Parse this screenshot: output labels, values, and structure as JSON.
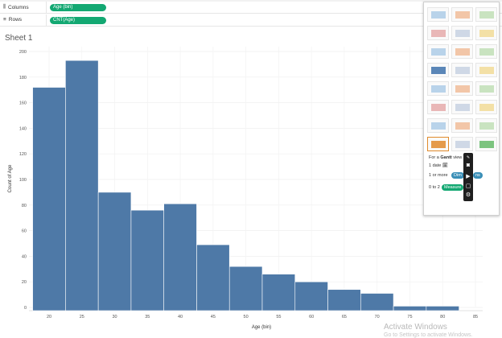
{
  "shelves": {
    "columns": {
      "label": "Columns",
      "pill": "Age (bin)"
    },
    "rows": {
      "label": "Rows",
      "pill": "CNT(Age)"
    }
  },
  "sheet": {
    "title": "Sheet 1"
  },
  "chart_data": {
    "type": "bar",
    "title": "",
    "xlabel": "Age (bin)",
    "ylabel": "Count of Age",
    "bin_starts": [
      20,
      25,
      30,
      35,
      40,
      45,
      50,
      55,
      60,
      65,
      70,
      75,
      80
    ],
    "bin_width": 5,
    "values": [
      172,
      193,
      90,
      76,
      81,
      49,
      32,
      26,
      20,
      14,
      11,
      1,
      1
    ],
    "x_ticks": [
      "20",
      "25",
      "30",
      "35",
      "40",
      "45",
      "50",
      "55",
      "60",
      "65",
      "70",
      "75",
      "80",
      "85"
    ],
    "y_ticks": [
      "0",
      "20",
      "40",
      "60",
      "80",
      "100",
      "120",
      "140",
      "160",
      "180",
      "200"
    ],
    "ylim": [
      0,
      200
    ],
    "xlim": [
      17.5,
      87.5
    ],
    "bar_color": "#4e79a7",
    "grid": true
  },
  "show_me": {
    "hint_prefix": "For a ",
    "hint_bold": "Gantt",
    "hint_suffix": " view",
    "line1": "1 date",
    "line2_prefix": "1 or more",
    "line2_pill": "Dim",
    "line2_tail": "ns",
    "line3_prefix": "0 to 2",
    "line3_pill": "Measure",
    "dim_color": "#3a8fb7",
    "measure_color": "#13a872"
  },
  "watermark": {
    "line1": "Activate Windows",
    "line2": "Go to Settings to activate Windows."
  }
}
